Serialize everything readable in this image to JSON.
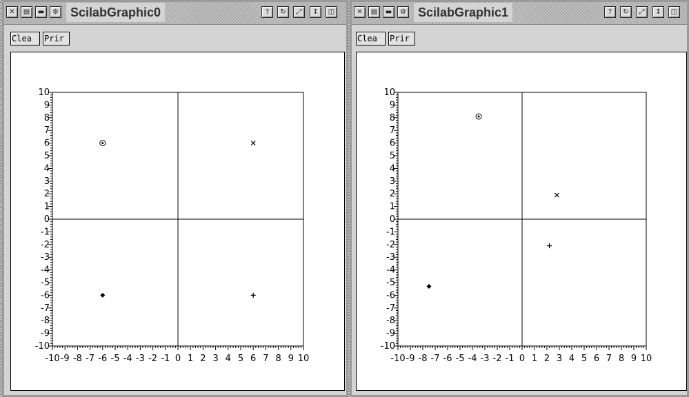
{
  "windows": [
    {
      "title": "ScilabGraphic0",
      "menu": {
        "clear_label": "Clea",
        "print_label": "Prir"
      },
      "chart_data": {
        "type": "scatter",
        "xlim": [
          -10,
          10
        ],
        "ylim": [
          -10,
          10
        ],
        "x_tick_labels": [
          "-10",
          "-9",
          "-8",
          "-7",
          "-6",
          "-5",
          "-4",
          "-3",
          "-2",
          "-1",
          "0",
          "1",
          "2",
          "3",
          "4",
          "5",
          "6",
          "7",
          "8",
          "9",
          "10"
        ],
        "y_tick_labels": [
          "10",
          "9",
          "8",
          "7",
          "6",
          "5",
          "4",
          "3",
          "2",
          "1",
          "0",
          "-1",
          "-2",
          "-3",
          "-4",
          "-5",
          "-6",
          "-7",
          "-8",
          "-9",
          "-10"
        ],
        "grid": false,
        "axis_lines_through_origin": true,
        "points": [
          {
            "x": -6,
            "y": 6,
            "marker": "circled-dot"
          },
          {
            "x": 6,
            "y": 6,
            "marker": "x"
          },
          {
            "x": -6,
            "y": -6,
            "marker": "diamond"
          },
          {
            "x": 6,
            "y": -6,
            "marker": "plus"
          }
        ]
      }
    },
    {
      "title": "ScilabGraphic1",
      "menu": {
        "clear_label": "Clea",
        "print_label": "Prir"
      },
      "chart_data": {
        "type": "scatter",
        "xlim": [
          -10,
          10
        ],
        "ylim": [
          -10,
          10
        ],
        "x_tick_labels": [
          "-10",
          "-9",
          "-8",
          "-7",
          "-6",
          "-5",
          "-4",
          "-3",
          "-2",
          "-1",
          "0",
          "1",
          "2",
          "3",
          "4",
          "5",
          "6",
          "7",
          "8",
          "9",
          "10"
        ],
        "y_tick_labels": [
          "10",
          "9",
          "8",
          "7",
          "6",
          "5",
          "4",
          "3",
          "2",
          "1",
          "0",
          "-1",
          "-2",
          "-3",
          "-4",
          "-5",
          "-6",
          "-7",
          "-8",
          "-9",
          "-10"
        ],
        "grid": false,
        "axis_lines_through_origin": true,
        "points": [
          {
            "x": -3.5,
            "y": 8.1,
            "marker": "circled-dot"
          },
          {
            "x": 2.8,
            "y": 1.9,
            "marker": "x"
          },
          {
            "x": -7.5,
            "y": -5.3,
            "marker": "diamond"
          },
          {
            "x": 2.2,
            "y": -2.1,
            "marker": "plus"
          }
        ]
      }
    }
  ],
  "titlebar_icons": [
    "close-x-icon",
    "iconify-icon",
    "minimize-icon",
    "menu-icon",
    "help-icon",
    "refresh-icon",
    "zoom-icon",
    "maximize-vertical-icon",
    "lower-icon"
  ]
}
